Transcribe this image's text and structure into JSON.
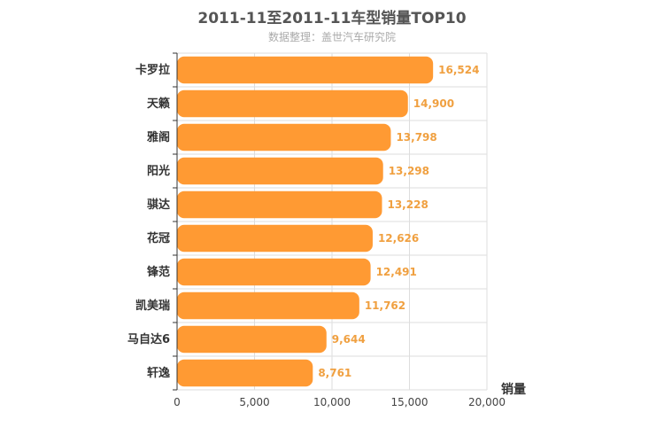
{
  "chart_data": {
    "type": "bar",
    "orientation": "horizontal",
    "title": "2011-11至2011-11车型销量TOP10",
    "subtitle": "数据整理：盖世汽车研究院",
    "xlabel": "销量",
    "ylabel": "",
    "categories": [
      "卡罗拉",
      "天籁",
      "雅阁",
      "阳光",
      "骐达",
      "花冠",
      "锋范",
      "凯美瑞",
      "马自达6",
      "轩逸"
    ],
    "values": [
      16524,
      14900,
      13798,
      13298,
      13228,
      12626,
      12491,
      11762,
      9644,
      8761
    ],
    "value_labels": [
      "16,524",
      "14,900",
      "13,798",
      "13,298",
      "13,228",
      "12,626",
      "12,491",
      "11,762",
      "9,644",
      "8,761"
    ],
    "xlim": [
      0,
      20000
    ],
    "xticks": [
      0,
      5000,
      10000,
      15000,
      20000
    ],
    "xtick_labels": [
      "0",
      "5,000",
      "10,000",
      "15,000",
      "20,000"
    ],
    "grid": true,
    "colors": {
      "bar": "#ff9a33",
      "label": "#f0a040",
      "grid": "#dddddd"
    }
  }
}
